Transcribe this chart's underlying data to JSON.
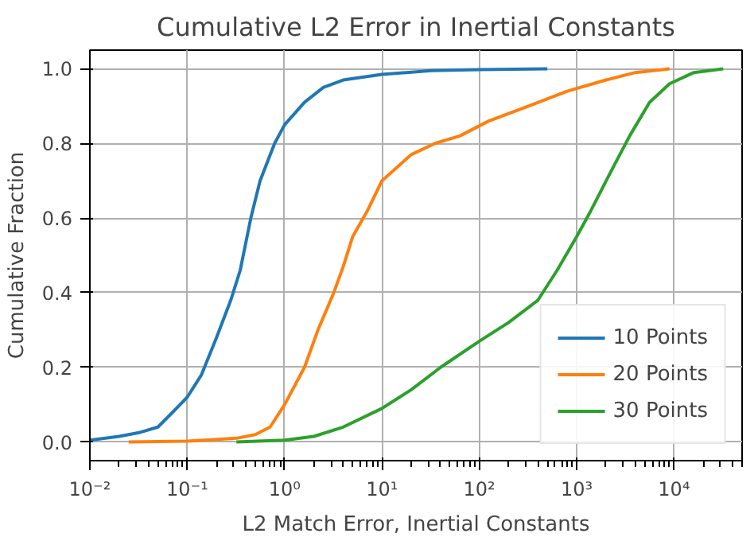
{
  "chart_data": {
    "type": "line",
    "title": "Cumulative L2 Error in Inertial Constants",
    "xlabel": "L2 Match Error, Inertial Constants",
    "ylabel": "Cumulative Fraction",
    "log": "x",
    "grid": true,
    "legend": "bottom right",
    "xlim": [
      0.01,
      50000
    ],
    "ylim": [
      -0.05,
      1.05
    ],
    "xticks": [
      {
        "value": 0.01,
        "label": "10⁻²"
      },
      {
        "value": 0.1,
        "label": "10⁻¹"
      },
      {
        "value": 1,
        "label": "10⁰"
      },
      {
        "value": 10,
        "label": "10¹"
      },
      {
        "value": 100,
        "label": "10²"
      },
      {
        "value": 1000,
        "label": "10³"
      },
      {
        "value": 10000,
        "label": "10⁴"
      }
    ],
    "yticks": [
      {
        "value": 0,
        "label": "0.0"
      },
      {
        "value": 0.2,
        "label": "0.2"
      },
      {
        "value": 0.4,
        "label": "0.4"
      },
      {
        "value": 0.6,
        "label": "0.6"
      },
      {
        "value": 0.8,
        "label": "0.8"
      },
      {
        "value": 1,
        "label": "1.0"
      }
    ],
    "series": [
      {
        "name": "10 Points",
        "color": "#1f77b4",
        "x": [
          0.01,
          0.02,
          0.032,
          0.05,
          0.071,
          0.1,
          0.14,
          0.2,
          0.28,
          0.35,
          0.45,
          0.56,
          0.79,
          1,
          1.6,
          2.5,
          4,
          10,
          32,
          100,
          500
        ],
        "values": [
          0.005,
          0.015,
          0.025,
          0.04,
          0.08,
          0.12,
          0.18,
          0.28,
          0.38,
          0.46,
          0.6,
          0.7,
          0.8,
          0.85,
          0.91,
          0.95,
          0.97,
          0.985,
          0.995,
          0.998,
          1.0
        ]
      },
      {
        "name": "20 Points",
        "color": "#ff7f0e",
        "x": [
          0.025,
          0.1,
          0.32,
          0.5,
          0.71,
          1,
          1.6,
          2.2,
          3.2,
          4,
          5,
          7.1,
          10,
          20,
          35,
          63,
          125,
          320,
          800,
          2000,
          4000,
          9000
        ],
        "values": [
          0,
          0.002,
          0.01,
          0.02,
          0.04,
          0.1,
          0.2,
          0.3,
          0.4,
          0.47,
          0.55,
          0.62,
          0.7,
          0.77,
          0.8,
          0.82,
          0.86,
          0.9,
          0.94,
          0.97,
          0.99,
          1.0
        ]
      },
      {
        "name": "30 Points",
        "color": "#2ca02c",
        "x": [
          0.32,
          1,
          2,
          4,
          10,
          20,
          40,
          100,
          200,
          400,
          630,
          1000,
          1400,
          2200,
          3500,
          5600,
          9000,
          16000,
          32000
        ],
        "values": [
          0,
          0.005,
          0.015,
          0.04,
          0.09,
          0.14,
          0.2,
          0.27,
          0.32,
          0.38,
          0.46,
          0.55,
          0.62,
          0.72,
          0.82,
          0.91,
          0.96,
          0.99,
          1.0
        ]
      }
    ]
  }
}
